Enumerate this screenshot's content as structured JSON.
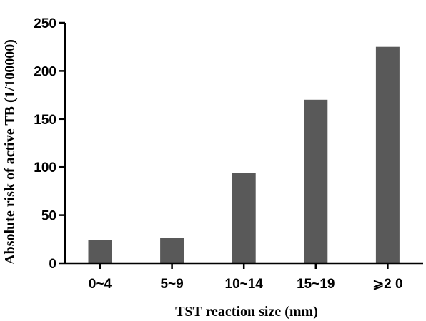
{
  "chart_data": {
    "type": "bar",
    "title": "",
    "xlabel": "TST reaction size (mm)",
    "ylabel": "Absolute risk of active TB (1/100000)",
    "categories": [
      "0~4",
      "5~9",
      "10~14",
      "15~19",
      "⩾2 0"
    ],
    "values": [
      24,
      26,
      94,
      170,
      225
    ],
    "ylim": [
      0,
      250
    ],
    "yticks": [
      0,
      50,
      100,
      150,
      200,
      250
    ],
    "grid": false,
    "legend": "none",
    "bar_color": "#595959"
  }
}
